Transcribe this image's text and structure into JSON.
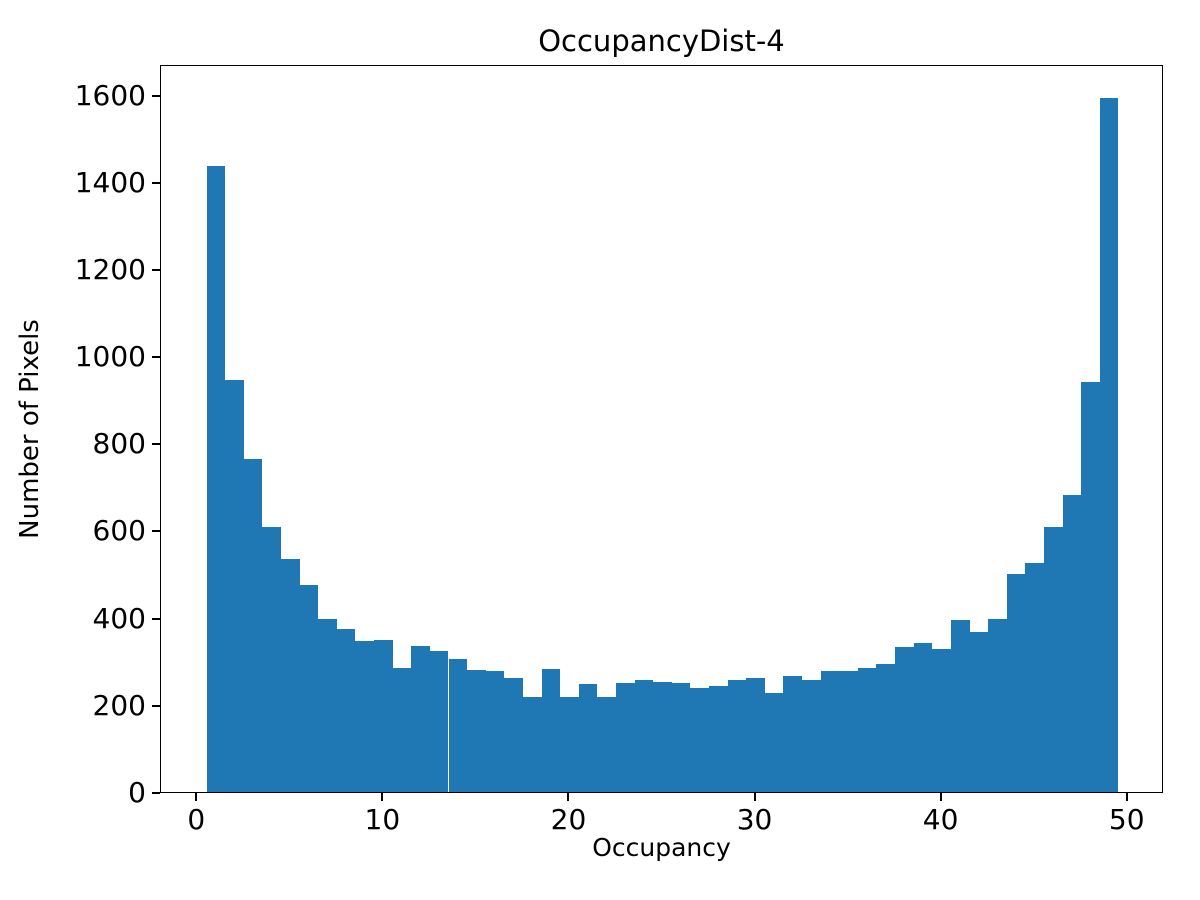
{
  "chart_data": {
    "type": "bar",
    "subtype": "histogram",
    "title": "OccupancyDist-4",
    "xlabel": "Occupancy",
    "ylabel": "Number of Pixels",
    "bar_color": "#1f77b4",
    "axis_color": "#000000",
    "background_color": "#ffffff",
    "bin_start": 0.5,
    "bin_width": 1,
    "values": [
      1435,
      945,
      765,
      608,
      534,
      476,
      398,
      375,
      347,
      348,
      285,
      334,
      324,
      306,
      281,
      277,
      262,
      218,
      283,
      218,
      247,
      218,
      249,
      258,
      252,
      250,
      239,
      243,
      256,
      262,
      228,
      267,
      256,
      277,
      277,
      285,
      293,
      333,
      341,
      328,
      394,
      366,
      398,
      500,
      525,
      608,
      681,
      941,
      1591
    ],
    "xlim": [
      -1.95,
      51.95
    ],
    "ylim": [
      0,
      1670
    ],
    "xticks": [
      0,
      10,
      20,
      30,
      40,
      50
    ],
    "yticks": [
      0,
      200,
      400,
      600,
      800,
      1000,
      1200,
      1400,
      1600
    ],
    "grid": false,
    "legend": null
  }
}
